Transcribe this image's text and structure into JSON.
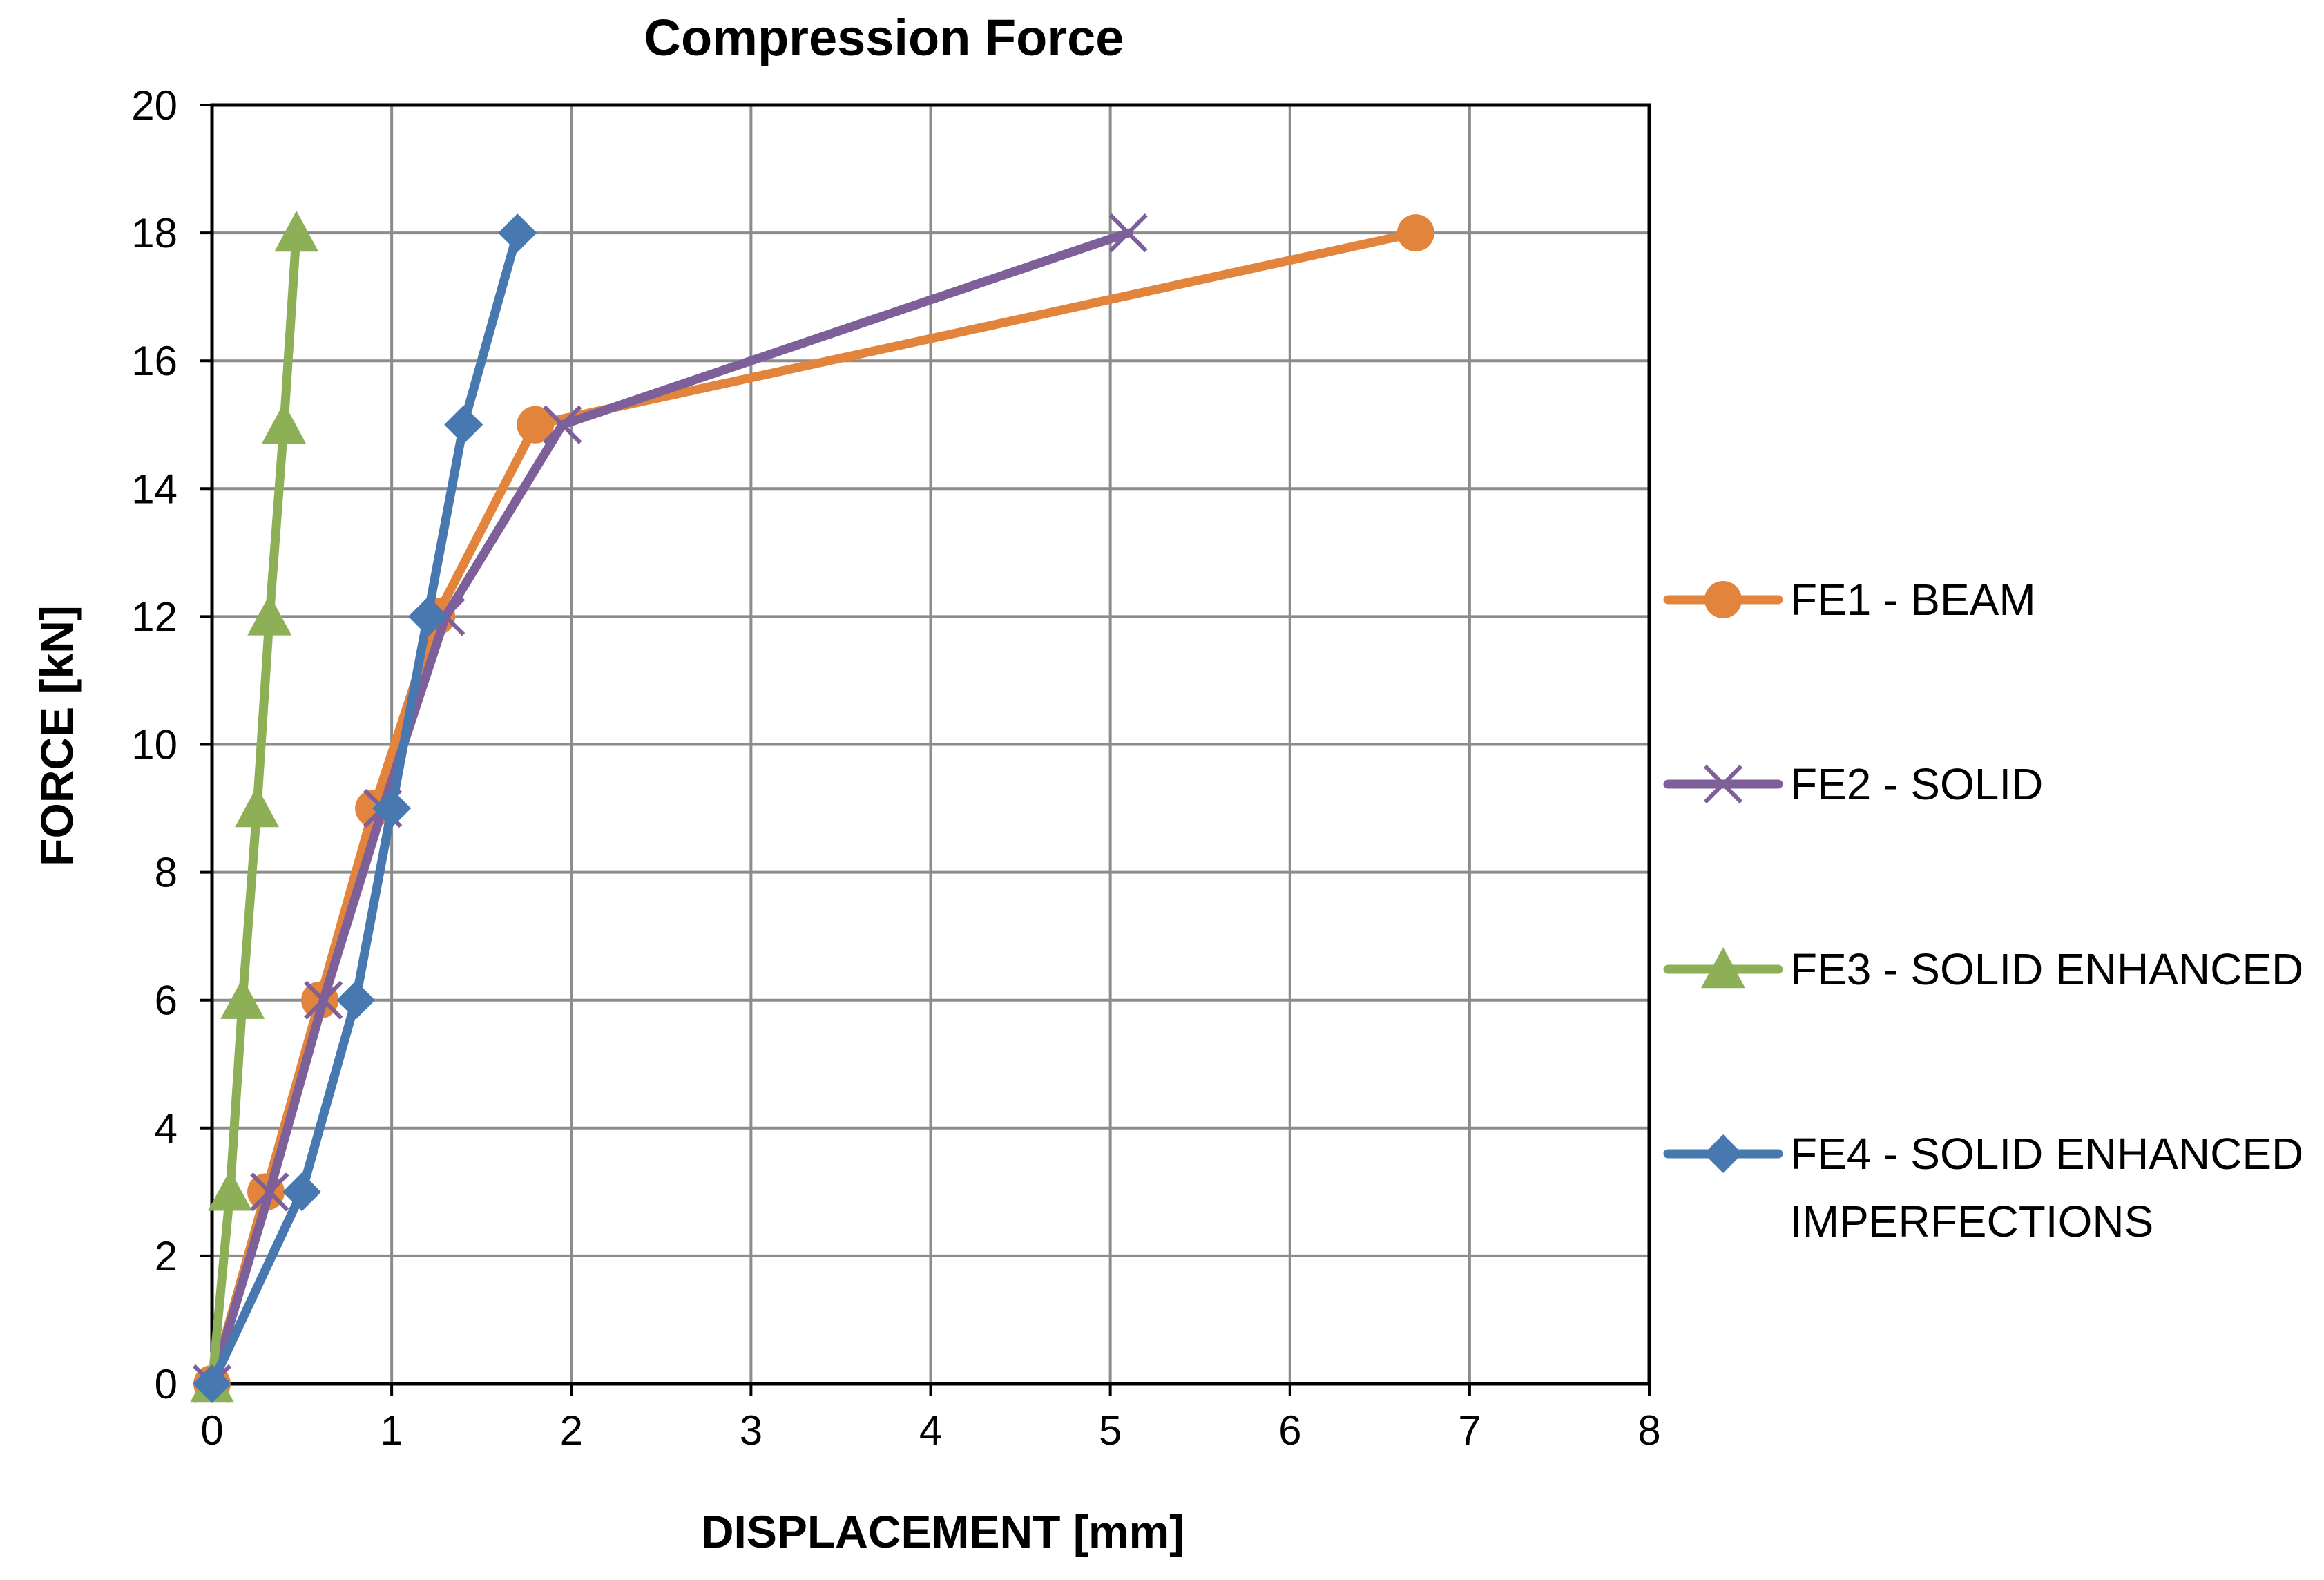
{
  "chart_data": {
    "type": "line",
    "title": "Compression Force",
    "xlabel": "DISPLACEMENT [mm]",
    "ylabel": "FORCE [kN]",
    "xlim": [
      0,
      8
    ],
    "ylim": [
      0,
      20
    ],
    "xticks": [
      0,
      1,
      2,
      3,
      4,
      5,
      6,
      7,
      8
    ],
    "yticks": [
      0,
      2,
      4,
      6,
      8,
      10,
      12,
      14,
      16,
      18,
      20
    ],
    "grid": true,
    "legend_position": "right",
    "series": [
      {
        "name": "FE1 - BEAM",
        "legend_lines": [
          "FE1 - BEAM"
        ],
        "color": "#E3843C",
        "marker": "circle",
        "x": [
          0,
          0.3,
          0.6,
          0.9,
          1.25,
          1.8,
          6.7
        ],
        "y": [
          0,
          3,
          6,
          9,
          12,
          15,
          18
        ]
      },
      {
        "name": "FE2 - SOLID",
        "legend_lines": [
          "FE2 - SOLID"
        ],
        "color": "#7D5F9A",
        "marker": "x",
        "x": [
          0,
          0.32,
          0.62,
          0.95,
          1.3,
          1.95,
          5.1
        ],
        "y": [
          0,
          3,
          6,
          9,
          12,
          15,
          18
        ]
      },
      {
        "name": "FE3 - SOLID ENHANCED",
        "legend_lines": [
          "FE3 - SOLID ENHANCED"
        ],
        "color": "#8DAF55",
        "marker": "triangle",
        "x": [
          0,
          0.1,
          0.17,
          0.25,
          0.32,
          0.4,
          0.47
        ],
        "y": [
          0,
          3,
          6,
          9,
          12,
          15,
          18
        ]
      },
      {
        "name": "FE4 - SOLID ENHANCED IMPERFECTIONS",
        "legend_lines": [
          "FE4 - SOLID ENHANCED",
          "IMPERFECTIONS"
        ],
        "color": "#4878B0",
        "marker": "diamond",
        "x": [
          0,
          0.5,
          0.8,
          1.0,
          1.2,
          1.4,
          1.7
        ],
        "y": [
          0,
          3,
          6,
          9,
          12,
          15,
          18
        ]
      }
    ]
  }
}
